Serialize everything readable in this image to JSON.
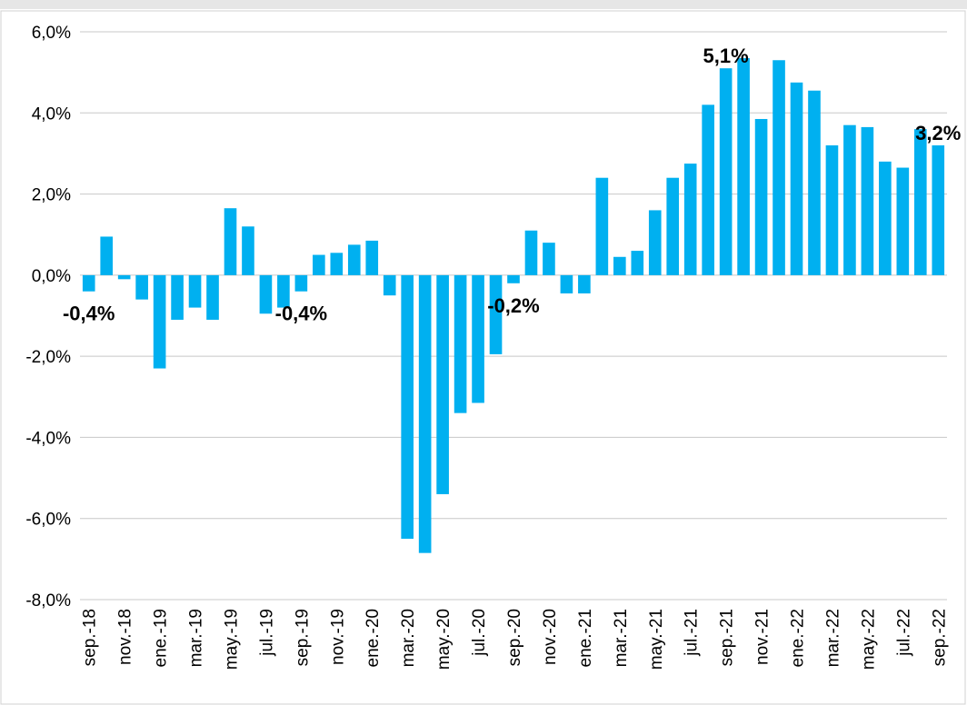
{
  "chart_data": {
    "type": "bar",
    "color": "#00b0f0",
    "categories": [
      "sep.-18",
      null,
      "nov.-18",
      null,
      "ene.-19",
      null,
      "mar.-19",
      null,
      "may.-19",
      null,
      "jul.-19",
      null,
      "sep.-19",
      null,
      "nov.-19",
      null,
      "ene.-20",
      null,
      "mar.-20",
      null,
      "may.-20",
      null,
      "jul.-20",
      null,
      "sep.-20",
      null,
      "nov.-20",
      null,
      "ene.-21",
      null,
      "mar.-21",
      null,
      "may.-21",
      null,
      "jul.-21",
      null,
      "sep.-21",
      null,
      "nov.-21",
      null,
      "ene.-22",
      null,
      "mar.-22",
      null,
      "may.-22",
      null,
      "jul.-22",
      null,
      "sep.-22"
    ],
    "values": [
      -0.4,
      0.95,
      -0.1,
      -0.6,
      -2.3,
      -1.1,
      -0.8,
      -1.1,
      1.65,
      1.2,
      -0.95,
      -0.8,
      -0.4,
      0.5,
      0.55,
      0.75,
      0.85,
      -0.5,
      -6.5,
      -6.85,
      -5.4,
      -3.4,
      -3.15,
      -1.95,
      -0.2,
      1.1,
      0.8,
      -0.45,
      -0.45,
      2.4,
      0.45,
      0.6,
      1.6,
      2.4,
      2.75,
      4.2,
      5.1,
      5.35,
      3.85,
      5.3,
      4.75,
      4.55,
      3.2,
      3.7,
      3.65,
      2.8,
      2.65,
      3.6,
      3.2
    ],
    "value_labels": [
      "-0,4%",
      null,
      null,
      null,
      null,
      null,
      null,
      null,
      null,
      null,
      null,
      null,
      "-0,4%",
      null,
      null,
      null,
      null,
      null,
      null,
      null,
      null,
      null,
      null,
      null,
      "-0,2%",
      null,
      null,
      null,
      null,
      null,
      null,
      null,
      null,
      null,
      null,
      null,
      "5,1%",
      null,
      null,
      null,
      null,
      null,
      null,
      null,
      null,
      null,
      null,
      null,
      "3,2%"
    ],
    "ylim": [
      -8,
      6
    ],
    "yticks": [
      {
        "value": -8,
        "label": "-8,0%"
      },
      {
        "value": -6,
        "label": "-6,0%"
      },
      {
        "value": -4,
        "label": "-4,0%"
      },
      {
        "value": -2,
        "label": "-2,0%"
      },
      {
        "value": 0,
        "label": "0,0%"
      },
      {
        "value": 2,
        "label": "2,0%"
      },
      {
        "value": 4,
        "label": "4,0%"
      },
      {
        "value": 6,
        "label": "6,0%"
      }
    ],
    "grid": true
  }
}
